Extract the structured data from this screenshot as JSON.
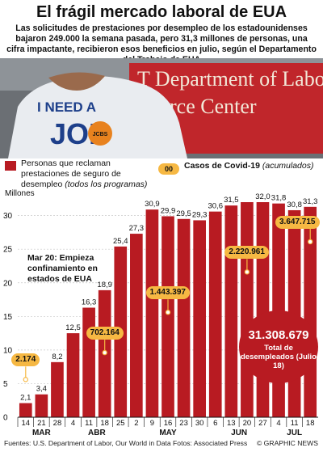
{
  "title": "El frágil mercado laboral de EUA",
  "subtitle": "Las solicitudes de prestaciones por desempleo de los estadounidenses bajaron 249.000 la semana pasada, pero 31,3 millones de personas, una cifra impactante, recibieron esos beneficios en julio, según el Departamento del Trabajo de EUA",
  "photo": {
    "sign_line1": "T Department of Labor",
    "sign_line2": "rce Center",
    "shirt_line1": "I NEED A",
    "shirt_line2": "JOB",
    "badge_text": "JCBS"
  },
  "legend": {
    "claims_label": "Personas que reclaman prestaciones de seguro de desempleo",
    "claims_note": "(todos los programas)",
    "covid_badge": "00",
    "covid_label": "Casos de Covid-19",
    "covid_note": "(acumulados)",
    "claims_color": "#b81b22",
    "covid_color": "#f6b843"
  },
  "annotation": "Mar 20: Empieza confinamiento en estados de EUA",
  "total": {
    "value": "31.308.679",
    "label": "Total de desempleados (Julio 18)"
  },
  "footer": {
    "sources": "Fuentes: U.S. Department of Labor, Our World in Data    Fotos: Associated Press",
    "brand": "© GRAPHIC NEWS"
  },
  "chart_data": {
    "type": "bar",
    "ylabel": "Millones",
    "ylim": [
      0,
      32
    ],
    "yticks": [
      0,
      5,
      10,
      15,
      20,
      25,
      30
    ],
    "grid": true,
    "categories": [
      "14",
      "21",
      "28",
      "4",
      "11",
      "18",
      "25",
      "2",
      "9",
      "16",
      "23",
      "30",
      "6",
      "13",
      "20",
      "27",
      "4",
      "11",
      "18"
    ],
    "months": [
      {
        "label": "MAR",
        "start": 0,
        "end": 2
      },
      {
        "label": "ABR",
        "start": 3,
        "end": 6
      },
      {
        "label": "MAY",
        "start": 7,
        "end": 11
      },
      {
        "label": "JUN",
        "start": 12,
        "end": 15
      },
      {
        "label": "JUL",
        "start": 16,
        "end": 18
      }
    ],
    "series": [
      {
        "values": [
          2.1,
          3.4,
          8.2,
          12.5,
          16.3,
          18.9,
          25.4,
          27.3,
          30.9,
          29.9,
          29.5,
          29.3,
          30.6,
          31.5,
          32.0,
          32.0,
          31.8,
          30.8,
          31.3
        ],
        "labels": [
          "2,1",
          "3,4",
          "8,2",
          "12,5",
          "16,3",
          "18,9",
          "25,4",
          "27,3",
          "30,9",
          "29,9",
          "29,5",
          "29,3",
          "30,6",
          "31,5",
          "",
          "32,0",
          "31,8",
          "30,8",
          "31,3"
        ]
      }
    ],
    "covid_cases": [
      {
        "index": 0,
        "label": "2.174",
        "level": 8.5
      },
      {
        "index": 5,
        "label": "702.164",
        "level": 12.5
      },
      {
        "index": 9,
        "label": "1.443.397",
        "level": 18.5
      },
      {
        "index": 14,
        "label": "2.220.961",
        "level": 24.5
      },
      {
        "index": 18,
        "label": "3.647.715",
        "level": 29.0
      }
    ]
  }
}
